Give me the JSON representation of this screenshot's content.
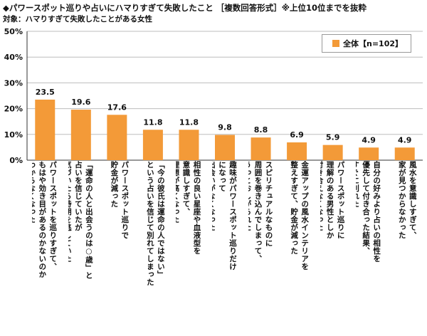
{
  "header": {
    "title": "◆パワースポット巡りや占いにハマりすぎて失敗したこと ［複数回答形式］※上位10位までを抜粋",
    "subtitle": "対象：ハマりすぎて失敗したことがある女性"
  },
  "legend": {
    "label": "全体【n=102】"
  },
  "colors": {
    "bar": "#f39a38",
    "grid": "#bdbdbd",
    "axis": "#333333"
  },
  "chart_data": {
    "type": "bar",
    "title": "◆パワースポット巡りや占いにハマりすぎて失敗したこと ［複数回答形式］※上位10位までを抜粋",
    "ylim": [
      0,
      50
    ],
    "yticks": [
      "0%",
      "10%",
      "20%",
      "30%",
      "40%",
      "50%"
    ],
    "grid": true,
    "legend_position": "top-right",
    "categories": [
      "パワースポットを巡りすぎて、\nもはや効き目があるのかないのか\nわからなくなった",
      "「運命の人と出会うのは○歳」と\n占いを信じていたが\n気づいたら時期を逃していた",
      "パワースポット巡りで\n貯金が減った",
      "「今の彼氏は運命の人ではない」\nという占いを信じて別れてしまった",
      "相性の良い星座や血液型を\n意識しすぎて、\n理想が高くなった",
      "趣味がパワースポット巡りだけ\nになって\n出会いがなくなった",
      "スピリチュアルなものに\n周囲を巻き込んでしまって、\nうっとおしがられた",
      "金運アップの風水インテリアを\n整えすぎて、貯金が減った",
      "パワースポット巡りに\n理解のある男性としか\n付き合えなくなった",
      "自分の好みより占いの相性を\n優先して付き合った結果、\nすぐに別れた",
      "風水を意識しすぎて、\n家が見つからなかった"
    ],
    "series": [
      {
        "name": "全体【n=102】",
        "values": [
          23.5,
          19.6,
          17.6,
          11.8,
          11.8,
          9.8,
          8.8,
          6.9,
          5.9,
          4.9,
          4.9
        ],
        "labels": [
          "23.5",
          "19.6",
          "17.6",
          "11.8",
          "11.8",
          "9.8",
          "8.8",
          "6.9",
          "5.9",
          "4.9",
          "4.9"
        ]
      }
    ]
  }
}
